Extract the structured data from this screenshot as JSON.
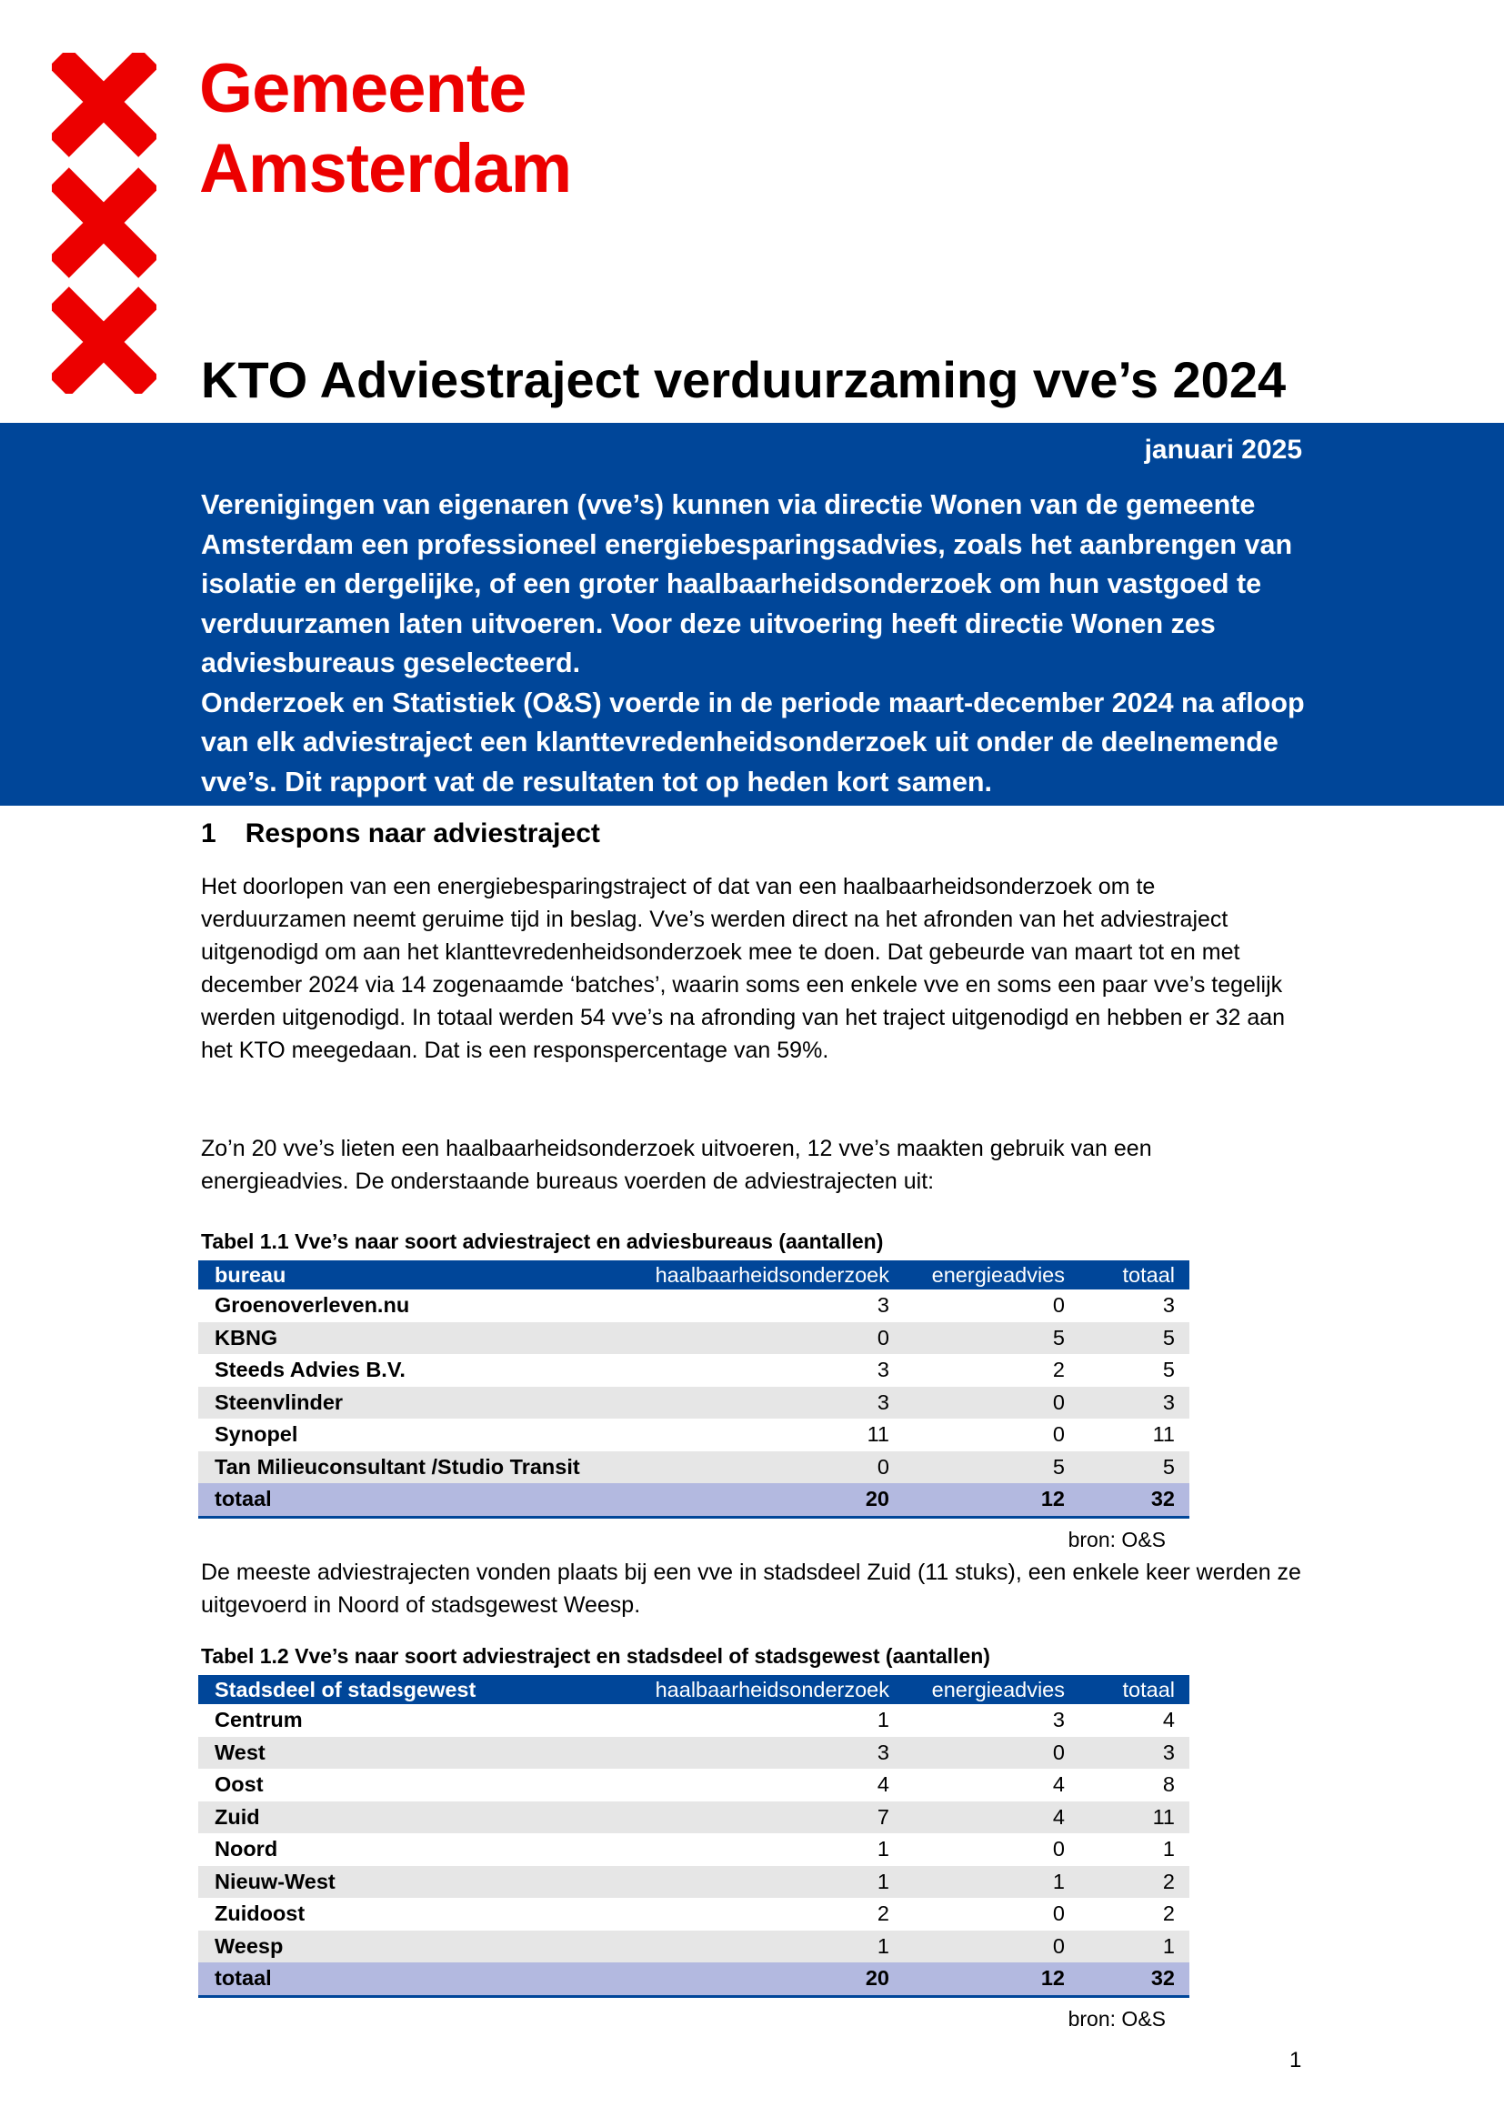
{
  "header": {
    "brand": [
      "Gemeente",
      "Amsterdam"
    ],
    "title": "KTO Adviestraject verduurzaming vve’s 2024",
    "date": "januari 2025",
    "intro": [
      "Verenigingen van eigenaren (vve’s) kunnen via directie Wonen van de gemeente Amsterdam een professioneel energiebesparingsadvies, zoals het aanbrengen van isolatie en dergelijke, of een groter haalbaarheidsonderzoek om hun vastgoed te verduurzamen laten uitvoeren. Voor deze uitvoering heeft directie Wonen zes adviesbureaus geselecteerd.",
      "Onderzoek en Statistiek (O&S) voerde in de periode maart-december 2024 na afloop van elk adviestraject een klanttevredenheidsonderzoek uit onder de deelnemende vve’s. Dit rapport vat de resultaten tot op heden kort samen."
    ]
  },
  "section": {
    "number": "1",
    "title": "Respons naar adviestraject"
  },
  "paragraphs": [
    "Het doorlopen van een energiebesparingstraject of dat van een haalbaarheidsonderzoek om te verduurzamen neemt geruime tijd in beslag. Vve’s werden direct na het afronden van het adviestraject uitgenodigd om aan het klanttevredenheidsonderzoek mee te doen. Dat gebeurde van maart tot en met december 2024 via 14 zogenaamde ‘batches’, waarin soms een enkele vve en soms een paar vve’s tegelijk werden uitgenodigd. In totaal werden 54 vve’s na afronding van het traject uitgenodigd en hebben er 32 aan het KTO meegedaan. Dat is een responspercentage van 59%.",
    "Zo’n 20 vve’s lieten een haalbaarheidsonderzoek uitvoeren, 12 vve’s maakten gebruik van een energieadvies. De onderstaande bureaus voerden de adviestrajecten uit:",
    "De meeste adviestrajecten vonden plaats bij een vve in stadsdeel Zuid (11 stuks), een enkele keer werden ze uitgevoerd in Noord of stadsgewest Weesp."
  ],
  "tables": [
    {
      "caption": "Tabel 1.1 Vve’s naar soort adviestraject en adviesbureaus (aantallen)",
      "columns": [
        "bureau",
        "haalbaarheidsonderzoek",
        "energieadvies",
        "totaal"
      ],
      "rows": [
        [
          "Groenoverleven.nu",
          3,
          0,
          3
        ],
        [
          "KBNG",
          0,
          5,
          5
        ],
        [
          "Steeds Advies B.V.",
          3,
          2,
          5
        ],
        [
          "Steenvlinder",
          3,
          0,
          3
        ],
        [
          "Synopel",
          11,
          0,
          11
        ],
        [
          "Tan Milieuconsultant /Studio Transit",
          0,
          5,
          5
        ]
      ],
      "total": [
        "totaal",
        20,
        12,
        32
      ],
      "source": "bron: O&S"
    },
    {
      "caption": "Tabel 1.2 Vve’s naar soort adviestraject en stadsdeel of stadsgewest (aantallen)",
      "columns": [
        "Stadsdeel of stadsgewest",
        "haalbaarheidsonderzoek",
        "energieadvies",
        "totaal"
      ],
      "rows": [
        [
          "Centrum",
          1,
          3,
          4
        ],
        [
          "West",
          3,
          0,
          3
        ],
        [
          "Oost",
          4,
          4,
          8
        ],
        [
          "Zuid",
          7,
          4,
          11
        ],
        [
          "Noord",
          1,
          0,
          1
        ],
        [
          "Nieuw-West",
          1,
          1,
          2
        ],
        [
          "Zuidoost",
          2,
          0,
          2
        ],
        [
          "Weesp",
          1,
          0,
          1
        ]
      ],
      "total": [
        "totaal",
        20,
        12,
        32
      ],
      "source": "bron: O&S"
    }
  ],
  "page_number": "1"
}
